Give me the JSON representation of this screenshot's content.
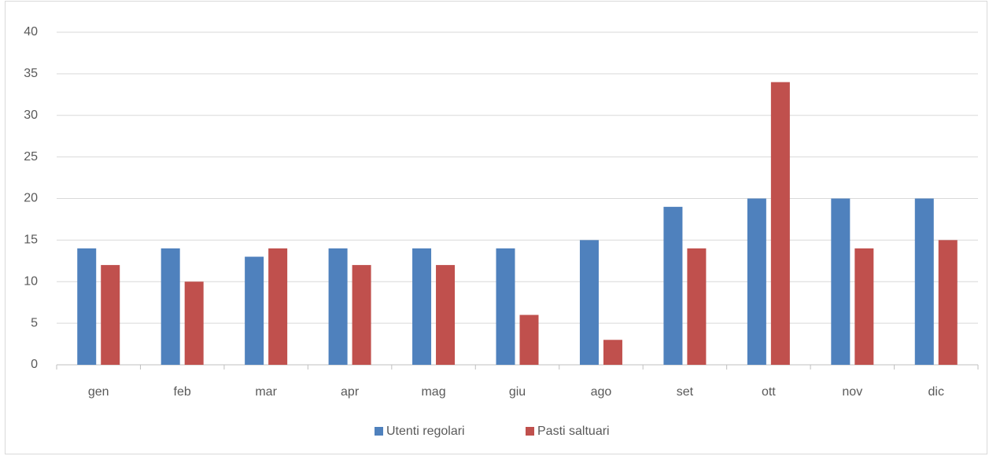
{
  "chart_data": {
    "type": "bar",
    "categories": [
      "gen",
      "feb",
      "mar",
      "apr",
      "mag",
      "giu",
      "ago",
      "set",
      "ott",
      "nov",
      "dic"
    ],
    "series": [
      {
        "name": "Utenti regolari",
        "color": "#4f81bd",
        "values": [
          14,
          14,
          13,
          14,
          14,
          14,
          15,
          19,
          20,
          20,
          20
        ]
      },
      {
        "name": "Pasti saltuari",
        "color": "#c0504d",
        "values": [
          12,
          10,
          14,
          12,
          12,
          6,
          3,
          14,
          34,
          14,
          15
        ]
      }
    ],
    "ylim": [
      0,
      40
    ],
    "yticks": [
      0,
      5,
      10,
      15,
      20,
      25,
      30,
      35,
      40
    ],
    "grid": true,
    "legend": "bottom"
  }
}
